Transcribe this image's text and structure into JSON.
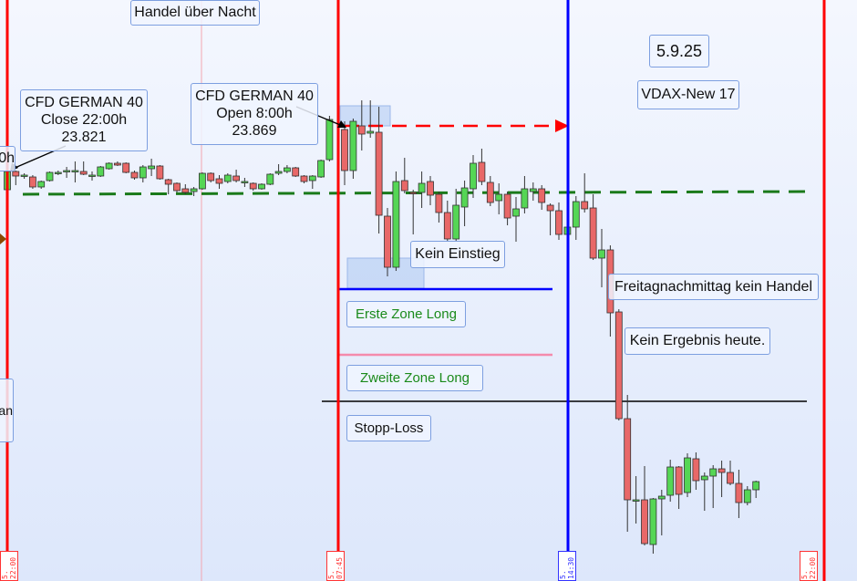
{
  "colors": {
    "up": "#55d655",
    "down": "#e86868",
    "session_line": "#ff0000",
    "marker_line": "#0000ff",
    "midnight_line": "#f4a6b0",
    "ema_dashed": "#1a7a1a"
  },
  "labels": {
    "overnight": "Handel über Nacht",
    "date": "5.9.25",
    "vdax": "VDAX-New 17",
    "close_title": "CFD GERMAN 40",
    "close_sub": "Close 22:00h",
    "close_value": "23.821",
    "open_title": "CFD GERMAN 40",
    "open_sub": "Open 8:00h",
    "open_value": "23.869",
    "kein_einstieg": "Kein Einstieg",
    "freitag": "Freitagnachmittag kein Handel",
    "kein_ergebnis": "Kein Ergebnis heute.",
    "erste_zone": "Erste Zone Long",
    "zweite_zone": "Zweite  Zone Long",
    "stopp_loss": "Stopp-Loss",
    "left_partial_1": "0h",
    "left_partial_2": "an"
  },
  "time_labels": [
    "5. 22:00",
    "5. 07:45",
    "5. 14:30",
    "5. 22:00"
  ],
  "chart_data": {
    "type": "candlestick",
    "levels": {
      "erste_zone_long": 23690,
      "zweite_zone_long": 23618,
      "stopp_loss": 23567,
      "open_level": 23869,
      "dashed_average": 23795
    },
    "overnight": [
      [
        23799,
        23822,
        23797,
        23819
      ],
      [
        23819,
        23820,
        23804,
        23814
      ],
      [
        23814,
        23817,
        23811,
        23815
      ],
      [
        23813,
        23815,
        23800,
        23802
      ],
      [
        23802,
        23809,
        23800,
        23808
      ],
      [
        23809,
        23819,
        23808,
        23818
      ],
      [
        23817,
        23820,
        23815,
        23818
      ],
      [
        23819,
        23824,
        23812,
        23820
      ],
      [
        23820,
        23830,
        23807,
        23820
      ],
      [
        23819,
        23830,
        23815,
        23816
      ],
      [
        23815,
        23819,
        23809,
        23815
      ],
      [
        23814,
        23825,
        23813,
        23824
      ],
      [
        23822,
        23829,
        23821,
        23828
      ],
      [
        23828,
        23830,
        23825,
        23826
      ],
      [
        23828,
        23829,
        23817,
        23818
      ],
      [
        23818,
        23820,
        23810,
        23812
      ],
      [
        23812,
        23826,
        23807,
        23824
      ],
      [
        23822,
        23833,
        23814,
        23825
      ],
      [
        23825,
        23826,
        23810,
        23811
      ],
      [
        23810,
        23811,
        23794,
        23805
      ],
      [
        23806,
        23807,
        23796,
        23798
      ],
      [
        23800,
        23805,
        23794,
        23796
      ],
      [
        23797,
        23802,
        23792,
        23800
      ],
      [
        23800,
        23818,
        23799,
        23817
      ],
      [
        23817,
        23818,
        23807,
        23809
      ],
      [
        23811,
        23815,
        23800,
        23806
      ],
      [
        23808,
        23817,
        23806,
        23815
      ],
      [
        23814,
        23821,
        23807,
        23809
      ],
      [
        23808,
        23812,
        23802,
        23808
      ],
      [
        23806,
        23807,
        23798,
        23800
      ],
      [
        23800,
        23806,
        23799,
        23805
      ],
      [
        23805,
        23817,
        23804,
        23816
      ],
      [
        23817,
        23827,
        23815,
        23819
      ],
      [
        23819,
        23826,
        23817,
        23823
      ],
      [
        23823,
        23824,
        23813,
        23814
      ],
      [
        23814,
        23815,
        23806,
        23808
      ],
      [
        23809,
        23815,
        23800,
        23814
      ],
      [
        23813,
        23832,
        23812,
        23831
      ],
      [
        23832,
        23880,
        23830,
        23876
      ]
    ],
    "day": [
      [
        23865,
        23874,
        23804,
        23820
      ],
      [
        23820,
        23877,
        23811,
        23874
      ],
      [
        23869,
        23897,
        23842,
        23860
      ],
      [
        23861,
        23897,
        23856,
        23863
      ],
      [
        23862,
        23890,
        23751,
        23771
      ],
      [
        23770,
        23779,
        23704,
        23714
      ],
      [
        23714,
        23819,
        23710,
        23808
      ],
      [
        23809,
        23834,
        23795,
        23798
      ],
      [
        23796,
        23799,
        23750,
        23795
      ],
      [
        23796,
        23819,
        23779,
        23806
      ],
      [
        23808,
        23814,
        23782,
        23793
      ],
      [
        23794,
        23797,
        23763,
        23774
      ],
      [
        23774,
        23787,
        23742,
        23745
      ],
      [
        23745,
        23800,
        23743,
        23782
      ],
      [
        23780,
        23809,
        23759,
        23801
      ],
      [
        23800,
        23837,
        23790,
        23828
      ],
      [
        23829,
        23844,
        23804,
        23808
      ],
      [
        23807,
        23814,
        23781,
        23785
      ],
      [
        23787,
        23806,
        23772,
        23794
      ],
      [
        23794,
        23797,
        23760,
        23768
      ],
      [
        23770,
        23791,
        23742,
        23778
      ],
      [
        23779,
        23814,
        23773,
        23800
      ],
      [
        23797,
        23807,
        23787,
        23800
      ],
      [
        23800,
        23804,
        23777,
        23785
      ],
      [
        23782,
        23784,
        23749,
        23776
      ],
      [
        23776,
        23785,
        23744,
        23750
      ],
      [
        23750,
        23760,
        23748,
        23758
      ],
      [
        23758,
        23792,
        23744,
        23786
      ],
      [
        23786,
        23817,
        23774,
        23778
      ],
      [
        23779,
        23794,
        23722,
        23724
      ],
      [
        23724,
        23756,
        23692,
        23733
      ],
      [
        23733,
        23738,
        23638,
        23664
      ],
      [
        23665,
        23668,
        23546,
        23548
      ],
      [
        23548,
        23574,
        23424,
        23459
      ],
      [
        23459,
        23485,
        23433,
        23459
      ],
      [
        23459,
        23496,
        23409,
        23411
      ],
      [
        23410,
        23461,
        23400,
        23460
      ],
      [
        23460,
        23470,
        23420,
        23463
      ],
      [
        23464,
        23503,
        23457,
        23495
      ],
      [
        23495,
        23496,
        23449,
        23465
      ],
      [
        23467,
        23510,
        23462,
        23505
      ],
      [
        23504,
        23511,
        23470,
        23480
      ],
      [
        23481,
        23489,
        23447,
        23485
      ],
      [
        23485,
        23497,
        23450,
        23493
      ],
      [
        23493,
        23502,
        23462,
        23489
      ],
      [
        23489,
        23502,
        23475,
        23477
      ],
      [
        23477,
        23492,
        23439,
        23456
      ],
      [
        23456,
        23474,
        23453,
        23470
      ],
      [
        23470,
        23480,
        23461,
        23479
      ]
    ]
  }
}
